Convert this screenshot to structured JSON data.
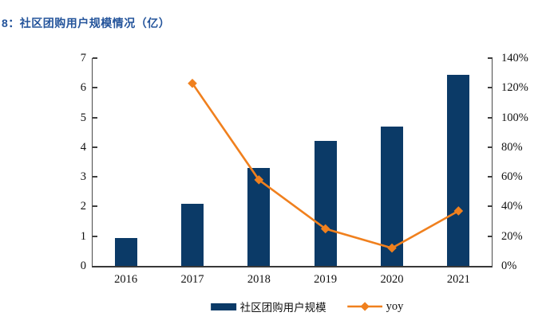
{
  "figure": {
    "title": "8：社区团购用户规模情况（亿）"
  },
  "colors": {
    "bar": "#0b3a67",
    "line": "#f0801e",
    "title_text": "#24549b",
    "axis_line": "#3f3f3f",
    "label_text": "#111111"
  },
  "chart_data": {
    "type": "bar+line",
    "title": "8：社区团购用户规模情况（亿）",
    "categories": [
      "2016",
      "2017",
      "2018",
      "2019",
      "2020",
      "2021"
    ],
    "series": [
      {
        "name": "社区团购用户规模",
        "type": "bar",
        "axis": "left",
        "unit": "亿",
        "values": [
          0.95,
          2.1,
          3.3,
          4.2,
          4.7,
          6.45
        ]
      },
      {
        "name": "yoy",
        "type": "line",
        "axis": "right",
        "unit": "%",
        "marker": "diamond",
        "values": [
          null,
          123,
          58,
          25,
          12,
          37
        ]
      }
    ],
    "left_axis": {
      "min": 0,
      "max": 7,
      "ticks": [
        "0",
        "1",
        "2",
        "3",
        "4",
        "5",
        "6",
        "7"
      ]
    },
    "right_axis": {
      "min": 0,
      "max": 140,
      "ticks": [
        "0%",
        "20%",
        "40%",
        "60%",
        "80%",
        "100%",
        "120%",
        "140%"
      ]
    },
    "grid": false,
    "legend_position": "bottom"
  },
  "legend": {
    "bar_label": "社区团购用户规模",
    "line_label": "yoy"
  }
}
